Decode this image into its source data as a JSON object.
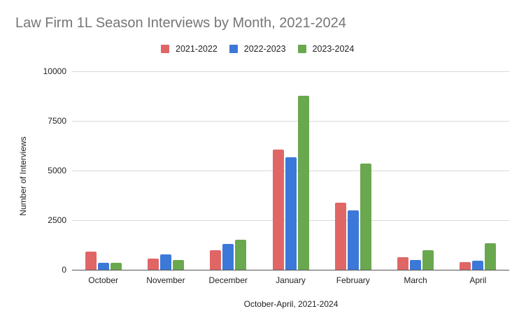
{
  "chart_data": {
    "type": "bar",
    "title": "Law Firm 1L Season Interviews by Month, 2021-2024",
    "xlabel": "October-April, 2021-2024",
    "ylabel": "Number of Interviews",
    "ylim": [
      0,
      10000
    ],
    "yticks": [
      "0",
      "2500",
      "5000",
      "7500",
      "10000"
    ],
    "grid": true,
    "legend_position": "top",
    "categories": [
      "October",
      "November",
      "December",
      "January",
      "February",
      "March",
      "April"
    ],
    "series": [
      {
        "name": "2021-2022",
        "color": "#e06666",
        "values": [
          920,
          560,
          990,
          6050,
          3380,
          630,
          390
        ]
      },
      {
        "name": "2022-2023",
        "color": "#3c78d8",
        "values": [
          350,
          770,
          1300,
          5670,
          3000,
          500,
          460
        ]
      },
      {
        "name": "2023-2024",
        "color": "#6aa84f",
        "values": [
          350,
          500,
          1510,
          8770,
          5350,
          990,
          1340
        ]
      }
    ]
  }
}
